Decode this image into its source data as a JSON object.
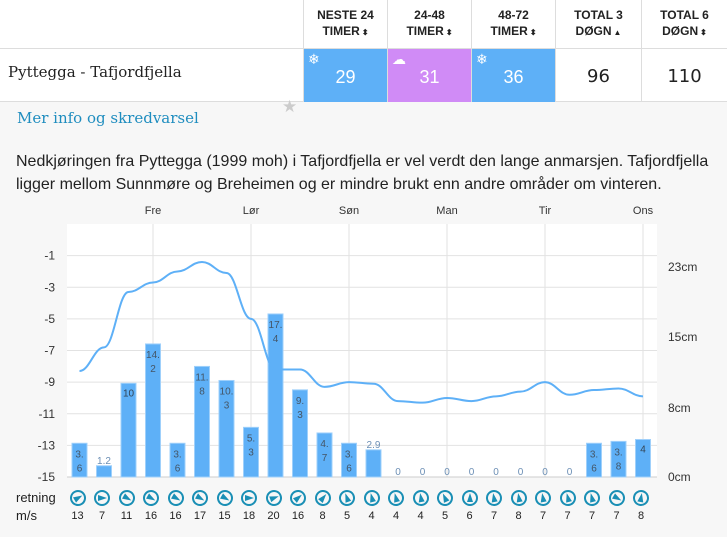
{
  "header": {
    "columns": [
      {
        "line1": "NESTE 24",
        "line2": "TIMER",
        "sort": "both"
      },
      {
        "line1": "24-48",
        "line2": "TIMER",
        "sort": "both"
      },
      {
        "line1": "48-72",
        "line2": "TIMER",
        "sort": "both"
      },
      {
        "line1": "TOTAL 3",
        "line2": "DØGN",
        "sort": "asc"
      },
      {
        "line1": "TOTAL 6",
        "line2": "DØGN",
        "sort": "both"
      }
    ]
  },
  "sort_icons": {
    "both": "⬍",
    "asc": "▲"
  },
  "location": {
    "name": "Pyttegga - Tafjordfjella",
    "favorite_icon": "star-icon",
    "values": [
      {
        "value": "29",
        "icon": "❄",
        "icon_name": "snowflake-icon",
        "color": "#5eb0f7"
      },
      {
        "value": "31",
        "icon": "☁",
        "icon_name": "sleet-cloud-icon",
        "color": "#d08bf6"
      },
      {
        "value": "36",
        "icon": "❄",
        "icon_name": "snowflake-icon",
        "color": "#5eb0f7"
      },
      {
        "value": "96"
      },
      {
        "value": "110"
      }
    ]
  },
  "link": "Mer info og skredvarsel",
  "description": "Nedkjøringen fra Pyttegga (1999 moh) i Tafjordfjella er vel verdt den lange anmarsjen. Tafjordfjella ligger mellom Sunnmøre og Breheimen og er mindre brukt enn andre områder om vinteren.",
  "chart_data": {
    "type": "bar+line",
    "days": [
      "Fre",
      "Lør",
      "Søn",
      "Man",
      "Tir",
      "Ons"
    ],
    "left_axis": {
      "ticks": [
        "-1",
        "-3",
        "-5",
        "-7",
        "-9",
        "-11",
        "-13",
        "-15"
      ],
      "range": [
        -15,
        1
      ]
    },
    "right_axis": {
      "ticks": [
        "23cm",
        "15cm",
        "8cm",
        "0cm"
      ],
      "range": [
        0,
        26
      ]
    },
    "snow_cm": [
      3.6,
      1.2,
      10,
      14.2,
      3.6,
      11.8,
      10.3,
      5.3,
      17.4,
      9.3,
      4.7,
      3.6,
      2.9,
      0,
      0,
      0,
      0,
      0,
      0,
      0,
      0,
      3.6,
      3.8,
      4
    ],
    "snow_labels": [
      "3.6",
      "1.2",
      "10",
      "14.2",
      "3.6",
      "11.8",
      "10.3",
      "5.3",
      "17.4",
      "9.3",
      "4.7",
      "3.6",
      "2.9",
      "0",
      "0",
      "0",
      "0",
      "0",
      "0",
      "0",
      "0",
      "3.6",
      "3.8",
      "4"
    ],
    "temperature": [
      -8.3,
      -6.8,
      -3.3,
      -2.7,
      -2.0,
      -1.4,
      -2.1,
      -5.0,
      -8.2,
      -8.2,
      -9.3,
      -9.0,
      -9.1,
      -10.2,
      -10.3,
      -10.0,
      -10.2,
      -9.9,
      -9.6,
      -9.0,
      -9.8,
      -9.5,
      -9.4,
      -9.9
    ],
    "bar_color": "#5eb0f7",
    "line_color": "#5eb0f7"
  },
  "wind": {
    "direction_label": "retning",
    "speed_label": "m/s",
    "speeds": [
      "13",
      "7",
      "11",
      "16",
      "16",
      "17",
      "15",
      "18",
      "20",
      "16",
      "8",
      "5",
      "4",
      "4",
      "4",
      "5",
      "6",
      "7",
      "8",
      "7",
      "7",
      "7",
      "7",
      "8"
    ],
    "directions_deg": [
      60,
      90,
      120,
      120,
      120,
      120,
      120,
      90,
      70,
      50,
      40,
      -20,
      -15,
      -15,
      -10,
      -25,
      0,
      -10,
      -10,
      -10,
      -15,
      -15,
      120,
      10
    ]
  }
}
